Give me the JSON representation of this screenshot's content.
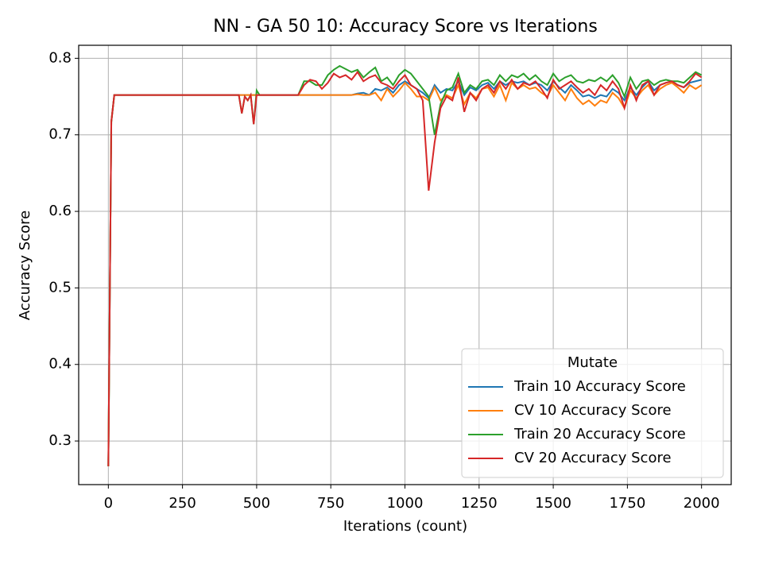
{
  "chart_data": {
    "type": "line",
    "title": "NN - GA 50 10: Accuracy Score vs Iterations",
    "xlabel": "Iterations (count)",
    "ylabel": "Accuracy Score",
    "legend_title": "Mutate",
    "legend_loc": "lower right",
    "grid": true,
    "xlim": [
      -100,
      2100
    ],
    "ylim": [
      0.243,
      0.817
    ],
    "xticks": [
      0,
      250,
      500,
      750,
      1000,
      1250,
      1500,
      1750,
      2000
    ],
    "yticks": [
      0.3,
      0.4,
      0.5,
      0.6,
      0.7,
      0.8
    ],
    "x": [
      0,
      10,
      20,
      440,
      450,
      460,
      470,
      480,
      490,
      500,
      510,
      640,
      660,
      680,
      700,
      720,
      740,
      760,
      780,
      800,
      820,
      840,
      860,
      880,
      900,
      920,
      940,
      960,
      980,
      1000,
      1020,
      1040,
      1060,
      1080,
      1100,
      1120,
      1140,
      1160,
      1180,
      1200,
      1220,
      1240,
      1260,
      1280,
      1300,
      1320,
      1340,
      1360,
      1380,
      1400,
      1420,
      1440,
      1460,
      1480,
      1500,
      1520,
      1540,
      1560,
      1580,
      1600,
      1620,
      1640,
      1660,
      1680,
      1700,
      1720,
      1740,
      1760,
      1780,
      1800,
      1820,
      1840,
      1860,
      1880,
      1900,
      1920,
      1940,
      1960,
      1980,
      2000
    ],
    "series": [
      {
        "name": "Train 10 Accuracy Score",
        "color": "#1f77b4",
        "values": [
          0.267,
          0.717,
          0.752,
          0.752,
          0.752,
          0.752,
          0.752,
          0.752,
          0.752,
          0.752,
          0.752,
          0.752,
          0.752,
          0.752,
          0.752,
          0.752,
          0.752,
          0.752,
          0.752,
          0.752,
          0.752,
          0.754,
          0.755,
          0.752,
          0.76,
          0.758,
          0.762,
          0.755,
          0.765,
          0.77,
          0.765,
          0.76,
          0.755,
          0.748,
          0.765,
          0.755,
          0.76,
          0.758,
          0.77,
          0.752,
          0.762,
          0.758,
          0.765,
          0.768,
          0.76,
          0.77,
          0.765,
          0.77,
          0.768,
          0.77,
          0.765,
          0.768,
          0.765,
          0.758,
          0.77,
          0.762,
          0.755,
          0.765,
          0.758,
          0.75,
          0.752,
          0.748,
          0.752,
          0.75,
          0.76,
          0.755,
          0.745,
          0.762,
          0.752,
          0.762,
          0.77,
          0.758,
          0.765,
          0.768,
          0.77,
          0.765,
          0.762,
          0.768,
          0.77,
          0.772
        ]
      },
      {
        "name": "CV 10 Accuracy Score",
        "color": "#ff7f0e",
        "values": [
          0.267,
          0.717,
          0.752,
          0.752,
          0.752,
          0.752,
          0.752,
          0.752,
          0.752,
          0.752,
          0.752,
          0.752,
          0.752,
          0.752,
          0.752,
          0.752,
          0.752,
          0.752,
          0.752,
          0.752,
          0.752,
          0.753,
          0.752,
          0.752,
          0.755,
          0.745,
          0.76,
          0.75,
          0.758,
          0.768,
          0.76,
          0.75,
          0.75,
          0.745,
          0.762,
          0.745,
          0.752,
          0.748,
          0.765,
          0.74,
          0.755,
          0.748,
          0.76,
          0.762,
          0.75,
          0.765,
          0.745,
          0.768,
          0.76,
          0.765,
          0.76,
          0.762,
          0.755,
          0.75,
          0.765,
          0.755,
          0.745,
          0.76,
          0.748,
          0.74,
          0.745,
          0.738,
          0.745,
          0.742,
          0.755,
          0.748,
          0.735,
          0.758,
          0.748,
          0.758,
          0.765,
          0.752,
          0.76,
          0.765,
          0.768,
          0.762,
          0.755,
          0.765,
          0.76,
          0.765
        ]
      },
      {
        "name": "Train 20 Accuracy Score",
        "color": "#2ca02c",
        "values": [
          0.267,
          0.717,
          0.752,
          0.752,
          0.728,
          0.75,
          0.745,
          0.752,
          0.714,
          0.758,
          0.752,
          0.752,
          0.77,
          0.77,
          0.765,
          0.765,
          0.778,
          0.785,
          0.79,
          0.786,
          0.782,
          0.785,
          0.775,
          0.782,
          0.788,
          0.77,
          0.775,
          0.765,
          0.778,
          0.785,
          0.78,
          0.77,
          0.76,
          0.75,
          0.7,
          0.74,
          0.758,
          0.762,
          0.78,
          0.755,
          0.765,
          0.76,
          0.77,
          0.772,
          0.765,
          0.778,
          0.77,
          0.778,
          0.775,
          0.78,
          0.772,
          0.778,
          0.77,
          0.765,
          0.78,
          0.77,
          0.775,
          0.778,
          0.77,
          0.768,
          0.772,
          0.77,
          0.775,
          0.77,
          0.778,
          0.768,
          0.75,
          0.775,
          0.76,
          0.77,
          0.772,
          0.765,
          0.77,
          0.772,
          0.77,
          0.77,
          0.768,
          0.775,
          0.782,
          0.778
        ]
      },
      {
        "name": "CV 20 Accuracy Score",
        "color": "#d62728",
        "values": [
          0.267,
          0.717,
          0.752,
          0.752,
          0.728,
          0.75,
          0.745,
          0.752,
          0.714,
          0.752,
          0.752,
          0.752,
          0.765,
          0.772,
          0.77,
          0.76,
          0.768,
          0.78,
          0.775,
          0.778,
          0.772,
          0.782,
          0.77,
          0.775,
          0.778,
          0.768,
          0.765,
          0.76,
          0.77,
          0.778,
          0.765,
          0.76,
          0.745,
          0.627,
          0.69,
          0.735,
          0.75,
          0.745,
          0.775,
          0.73,
          0.755,
          0.745,
          0.76,
          0.765,
          0.755,
          0.77,
          0.76,
          0.772,
          0.76,
          0.768,
          0.765,
          0.77,
          0.76,
          0.748,
          0.772,
          0.76,
          0.765,
          0.77,
          0.762,
          0.755,
          0.76,
          0.752,
          0.765,
          0.758,
          0.77,
          0.76,
          0.735,
          0.765,
          0.745,
          0.765,
          0.77,
          0.752,
          0.765,
          0.768,
          0.77,
          0.765,
          0.762,
          0.77,
          0.78,
          0.775
        ]
      }
    ]
  }
}
